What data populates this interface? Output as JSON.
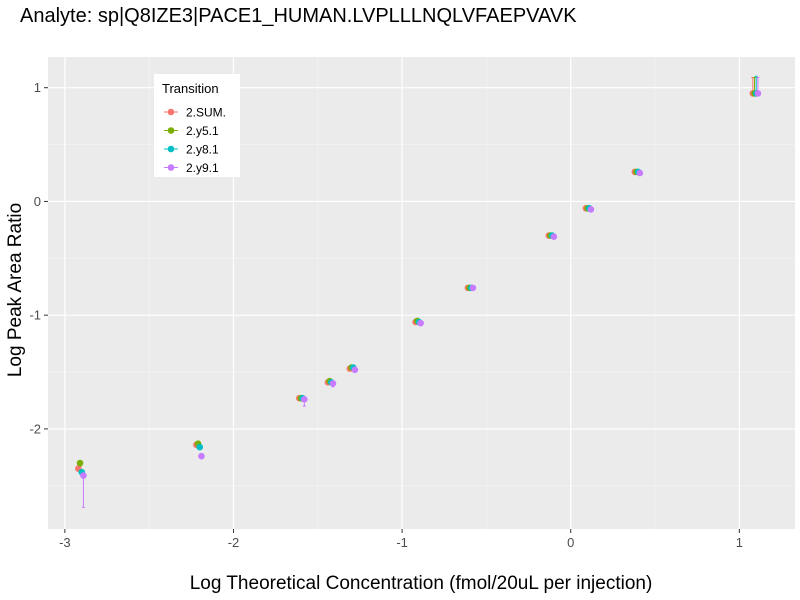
{
  "chart_data": {
    "type": "scatter",
    "title": "Analyte: sp|Q8IZE3|PACE1_HUMAN.LVPLLLNQLVFAEPVAVK",
    "xlabel": "Log Theoretical Concentration (fmol/20uL per injection)",
    "ylabel": "Log Peak Area Ratio",
    "xlim": [
      -3.1,
      1.33
    ],
    "ylim": [
      -2.88,
      1.27
    ],
    "x_ticks": [
      -3,
      -2,
      -1,
      0,
      1
    ],
    "y_ticks": [
      -2,
      -1,
      0,
      1
    ],
    "x_tick_labels": [
      "-3",
      "-2",
      "-1",
      "0",
      "1"
    ],
    "y_tick_labels": [
      "-2",
      "-1",
      "0",
      "1"
    ],
    "grid": true,
    "legend": {
      "title": "Transition",
      "position": "top-left"
    },
    "series": [
      {
        "name": "2.SUM.",
        "color": "#F8766D",
        "x": [
          -2.92,
          -2.22,
          -1.61,
          -1.44,
          -1.31,
          -0.92,
          -0.61,
          -0.13,
          0.09,
          0.38,
          1.08
        ],
        "y": [
          -2.35,
          -2.14,
          -1.73,
          -1.59,
          -1.47,
          -1.06,
          -0.76,
          -0.3,
          -0.06,
          0.26,
          0.95
        ],
        "ymin": [
          -2.37,
          -2.15,
          -1.74,
          -1.6,
          -1.48,
          -1.06,
          -0.76,
          -0.3,
          -0.06,
          0.26,
          0.95
        ],
        "ymax": [
          -2.32,
          -2.13,
          -1.72,
          -1.58,
          -1.46,
          -1.05,
          -0.75,
          -0.3,
          -0.06,
          0.26,
          1.09
        ]
      },
      {
        "name": "2.y5.1",
        "color": "#7CAE00",
        "x": [
          -2.91,
          -2.21,
          -1.6,
          -1.43,
          -1.3,
          -0.91,
          -0.6,
          -0.12,
          0.1,
          0.39,
          1.09
        ],
        "y": [
          -2.3,
          -2.13,
          -1.73,
          -1.58,
          -1.46,
          -1.05,
          -0.76,
          -0.3,
          -0.06,
          0.26,
          0.95
        ],
        "ymin": [
          -2.33,
          -2.15,
          -1.74,
          -1.6,
          -1.47,
          -1.06,
          -0.76,
          -0.3,
          -0.06,
          0.26,
          0.95
        ],
        "ymax": [
          -2.28,
          -2.12,
          -1.72,
          -1.57,
          -1.45,
          -1.05,
          -0.75,
          -0.3,
          -0.06,
          0.26,
          1.09
        ]
      },
      {
        "name": "2.y8.1",
        "color": "#00BFC4",
        "x": [
          -2.9,
          -2.2,
          -1.59,
          -1.42,
          -1.29,
          -0.9,
          -0.59,
          -0.11,
          0.11,
          0.4,
          1.1
        ],
        "y": [
          -2.38,
          -2.16,
          -1.73,
          -1.59,
          -1.46,
          -1.06,
          -0.76,
          -0.3,
          -0.06,
          0.26,
          0.95
        ],
        "ymin": [
          -2.4,
          -2.18,
          -1.74,
          -1.61,
          -1.48,
          -1.07,
          -0.76,
          -0.31,
          -0.07,
          0.26,
          0.95
        ],
        "ymax": [
          -2.37,
          -2.14,
          -1.72,
          -1.58,
          -1.45,
          -1.05,
          -0.75,
          -0.3,
          -0.06,
          0.26,
          1.1
        ]
      },
      {
        "name": "2.y9.1",
        "color": "#C77CFF",
        "x": [
          -2.89,
          -2.19,
          -1.58,
          -1.41,
          -1.28,
          -0.89,
          -0.58,
          -0.1,
          0.12,
          0.41,
          1.11
        ],
        "y": [
          -2.41,
          -2.24,
          -1.74,
          -1.6,
          -1.48,
          -1.07,
          -0.76,
          -0.31,
          -0.07,
          0.25,
          0.95
        ],
        "ymin": [
          -2.69,
          -2.25,
          -1.8,
          -1.63,
          -1.5,
          -1.08,
          -0.77,
          -0.31,
          -0.07,
          0.25,
          0.95
        ],
        "ymax": [
          -2.38,
          -2.23,
          -1.72,
          -1.58,
          -1.46,
          -1.06,
          -0.75,
          -0.3,
          -0.06,
          0.26,
          1.09
        ]
      }
    ]
  }
}
